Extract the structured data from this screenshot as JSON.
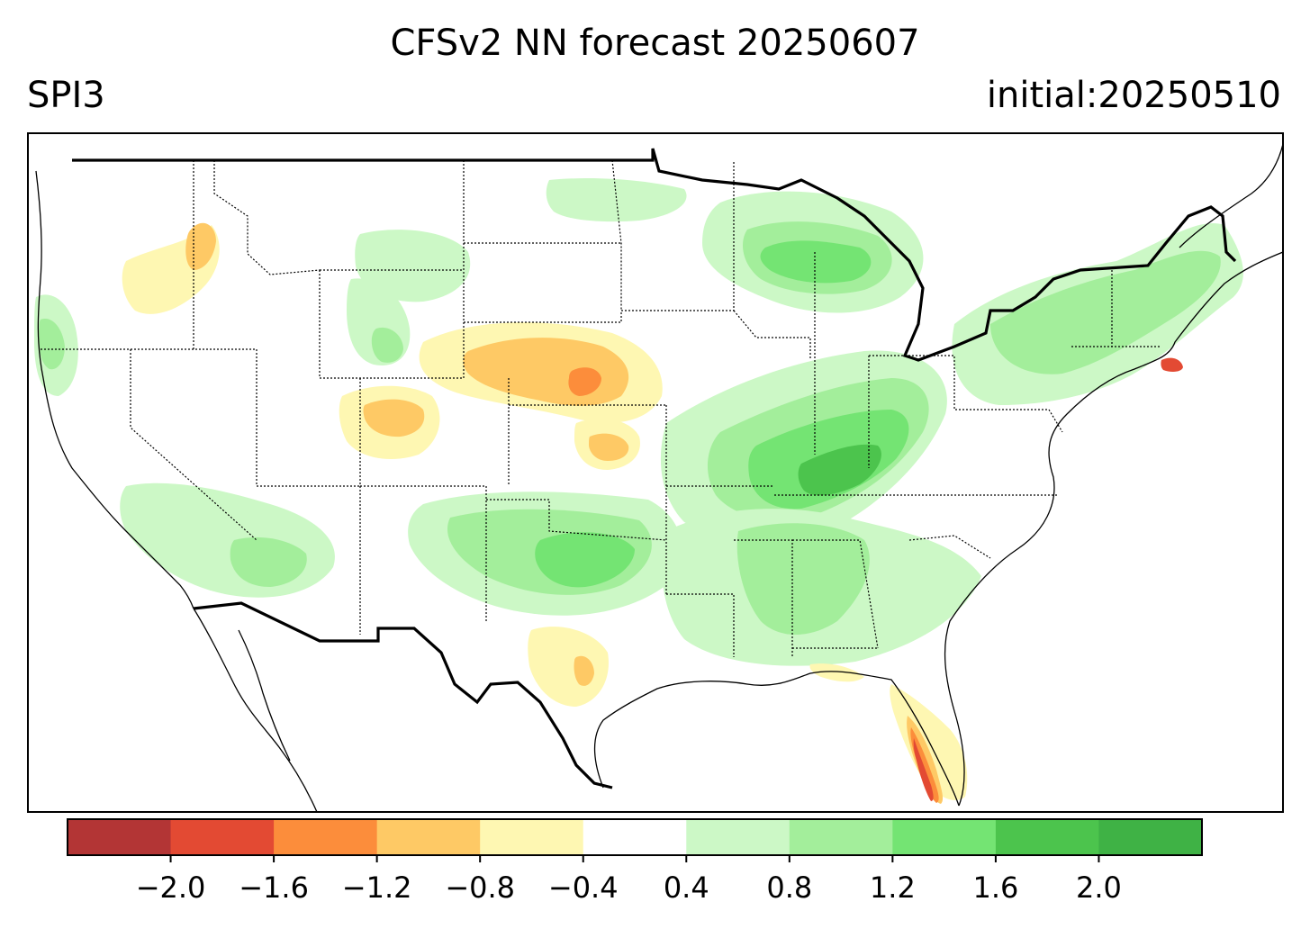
{
  "title": "CFSv2 NN forecast 20250607",
  "left_title": "SPI3",
  "right_title": "initial:20250510",
  "colorbar": {
    "colors": [
      "#b33535",
      "#e34a33",
      "#fc8d3b",
      "#fec965",
      "#fef7b2",
      "#ffffff",
      "#ccf8c6",
      "#a3ee9b",
      "#74e473",
      "#4cc44d",
      "#3fb245"
    ],
    "tick_labels": [
      "−2.0",
      "−1.6",
      "−1.2",
      "−0.8",
      "−0.4",
      "0.4",
      "0.8",
      "1.2",
      "1.6",
      "2.0"
    ]
  },
  "map": {
    "region": "Contiguous United States",
    "variable": "SPI3",
    "colors": {
      "dry_light": "#fef7b2",
      "dry_mid": "#fec965",
      "dry_strong": "#fc8d3b",
      "dry_severe": "#e34a33",
      "dry_extreme": "#b33535",
      "wet_light": "#ccf8c6",
      "wet_mid": "#a3ee9b",
      "wet_strong": "#74e473",
      "wet_severe": "#4cc44d"
    }
  }
}
